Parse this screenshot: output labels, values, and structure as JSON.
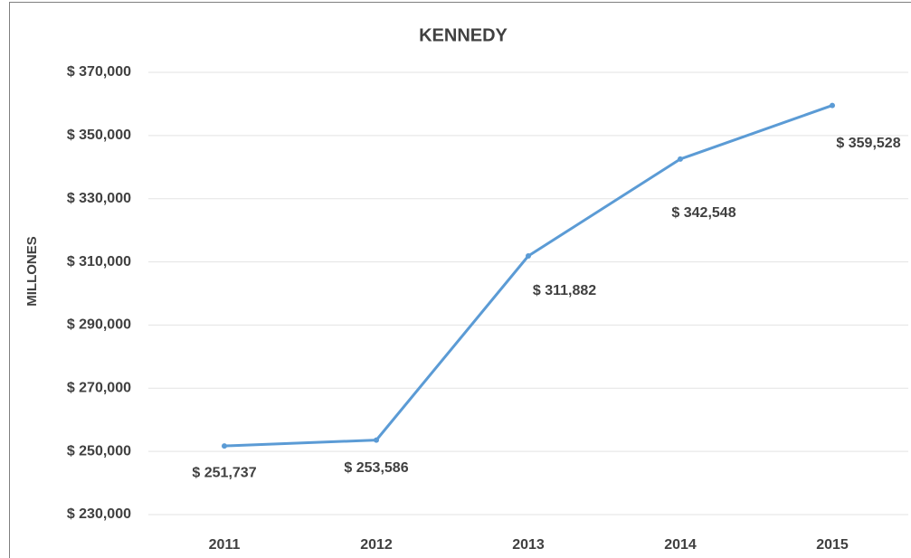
{
  "chart_data": {
    "type": "line",
    "title": "KENNEDY",
    "y_label": "MILLONES",
    "categories": [
      "2011",
      "2012",
      "2013",
      "2014",
      "2015"
    ],
    "series": [
      {
        "name": "KENNEDY",
        "color": "#5b9bd5",
        "values": [
          251737,
          253586,
          311882,
          342548,
          359528
        ],
        "value_labels": [
          "$ 251,737",
          "$ 253,586",
          "$ 311,882",
          "$ 342,548",
          "$ 359,528"
        ]
      }
    ],
    "ylim": [
      230000,
      370000
    ],
    "yticks": [
      {
        "value": 230000,
        "label": "$ 230,000"
      },
      {
        "value": 250000,
        "label": "$ 250,000"
      },
      {
        "value": 270000,
        "label": "$ 270,000"
      },
      {
        "value": 290000,
        "label": "$ 290,000"
      },
      {
        "value": 310000,
        "label": "$ 310,000"
      },
      {
        "value": 330000,
        "label": "$ 330,000"
      },
      {
        "value": 350000,
        "label": "$ 350,000"
      },
      {
        "value": 370000,
        "label": "$ 370,000"
      }
    ],
    "grid": true
  }
}
